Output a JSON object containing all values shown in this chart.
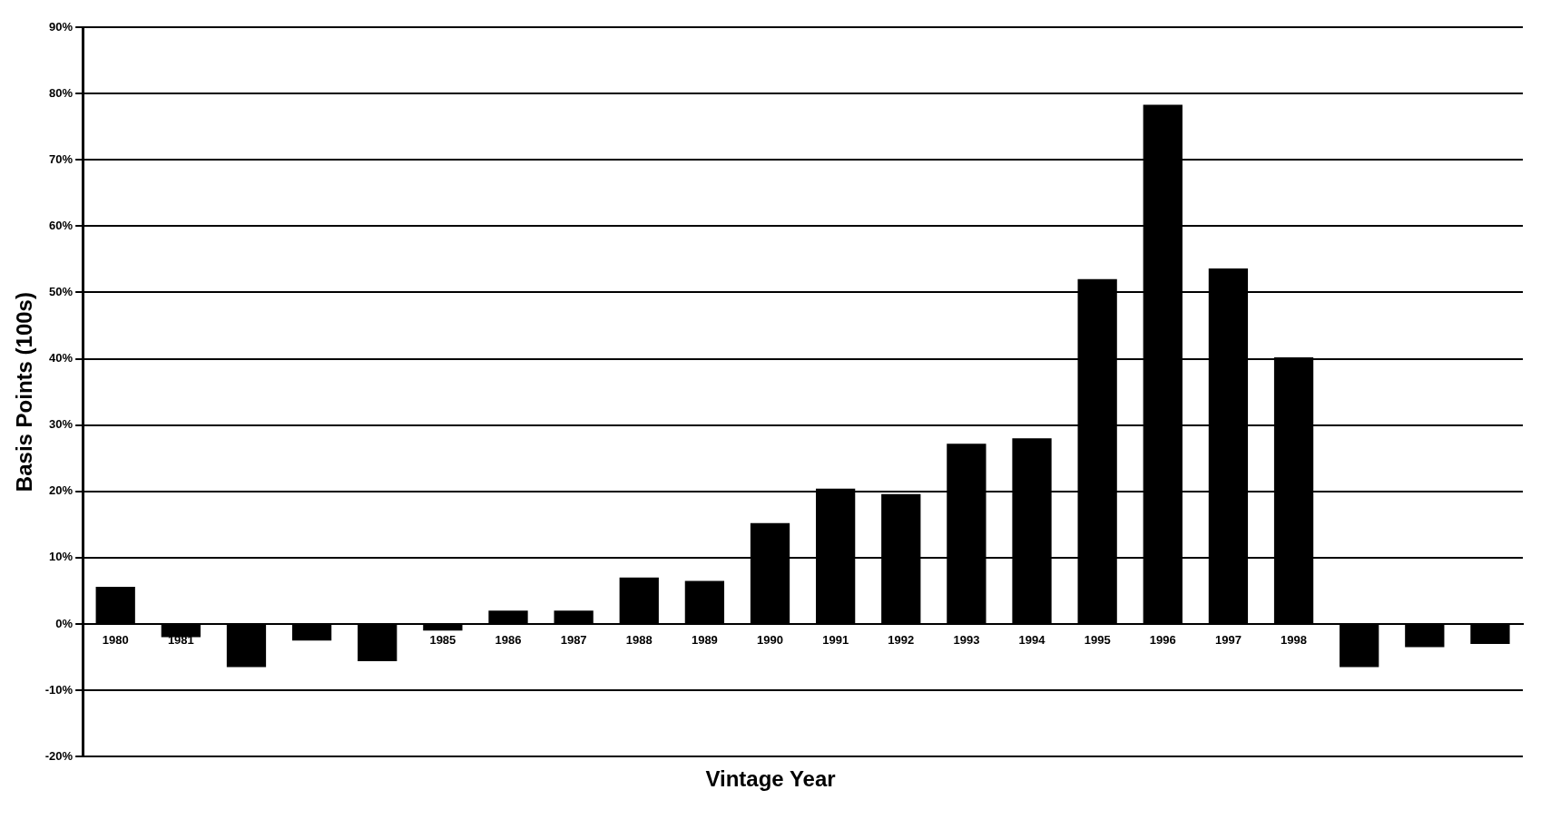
{
  "chart_data": {
    "type": "bar",
    "xlabel": "Vintage Year",
    "ylabel": "Basis Points (100s)",
    "categories": [
      "1980",
      "1981",
      null,
      null,
      null,
      "1985",
      "1986",
      "1987",
      "1988",
      "1989",
      "1990",
      "1991",
      "1992",
      "1993",
      "1994",
      "1995",
      "1996",
      "1997",
      "1998",
      null,
      null,
      null
    ],
    "values": [
      5.6,
      -2,
      -6.5,
      -2.5,
      -5.6,
      -1,
      2,
      2,
      7,
      6.5,
      15.2,
      20.4,
      19.6,
      27.2,
      28,
      52,
      78.3,
      53.6,
      40.2,
      -6.5,
      -3.5,
      -3
    ],
    "color": "#000000",
    "ylim": [
      -20,
      90
    ],
    "yticks": [
      {
        "value": -20,
        "label": "-20%"
      },
      {
        "value": -10,
        "label": "-10%"
      },
      {
        "value": 0,
        "label": "0%"
      },
      {
        "value": 10,
        "label": "10%"
      },
      {
        "value": 20,
        "label": "20%"
      },
      {
        "value": 30,
        "label": "30%"
      },
      {
        "value": 40,
        "label": "40%"
      },
      {
        "value": 50,
        "label": "50%"
      },
      {
        "value": 60,
        "label": "60%"
      },
      {
        "value": 70,
        "label": "70%"
      },
      {
        "value": 80,
        "label": "80%"
      },
      {
        "value": 90,
        "label": "90%"
      }
    ],
    "grid": "y",
    "legend": false
  }
}
